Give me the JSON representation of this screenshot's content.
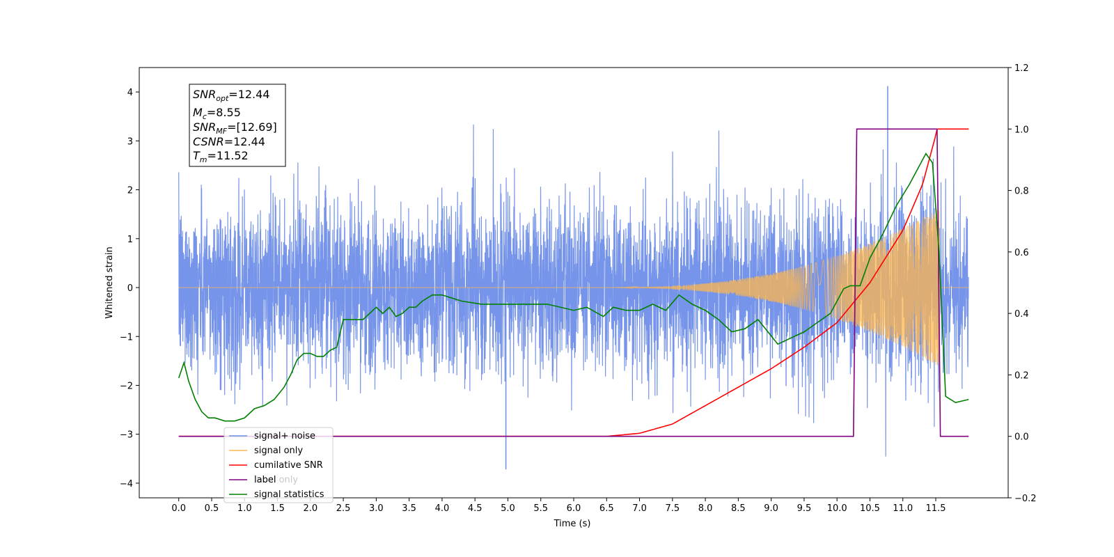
{
  "chart_data": {
    "type": "line",
    "xlabel": "Time (s)",
    "ylabel": "Whitened strain",
    "xlim": [
      -0.6,
      12.6
    ],
    "ylim": [
      -4.3,
      4.5
    ],
    "y2lim": [
      -0.2,
      1.2
    ],
    "x_ticks": [
      "0.0",
      "0.5",
      "1.0",
      "1.5",
      "2.0",
      "2.5",
      "3.0",
      "3.5",
      "4.0",
      "4.5",
      "5.0",
      "5.5",
      "6.0",
      "6.5",
      "7.0",
      "7.5",
      "8.0",
      "8.5",
      "9.0",
      "9.5",
      "10.0",
      "10.5",
      "11.0",
      "11.5"
    ],
    "y_ticks": [
      "−4",
      "−3",
      "−2",
      "−1",
      "0",
      "1",
      "2",
      "3",
      "4"
    ],
    "y2_ticks": [
      "−0.2",
      "0.0",
      "0.2",
      "0.4",
      "0.6",
      "0.8",
      "1.0",
      "1.2"
    ],
    "grid": false,
    "legend_position": "lower-left",
    "annotation": {
      "snr_opt_label": "SNR",
      "snr_opt_sub": "opt",
      "snr_opt_value": "=12.44",
      "mc_label": "M",
      "mc_sub": "c",
      "mc_value": "=8.55",
      "snr_mf_label": "SNR",
      "snr_mf_sub": "MF",
      "snr_mf_value": "=[12.69]",
      "csnr_label": "CSNR",
      "csnr_value": "=12.44",
      "tm_label": "T",
      "tm_sub": "m",
      "tm_value": "=11.52"
    },
    "series": [
      {
        "name": "signal+ noise",
        "color": "#6f8ee8",
        "axis": "left",
        "style": "noise",
        "duration": 12.0,
        "std": 0.85,
        "peak_max": 4.12,
        "peak_min": -3.72
      },
      {
        "name": "signal only",
        "color": "#ffb74d",
        "axis": "left",
        "style": "chirp",
        "onset": 6.3,
        "merger": 11.52,
        "peak_amplitude": 1.6
      },
      {
        "name": "cumilative SNR",
        "color": "#ff0000",
        "axis": "right",
        "x": [
          0,
          6.5,
          7.0,
          7.5,
          8.0,
          8.5,
          9.0,
          9.5,
          10.0,
          10.5,
          11.0,
          11.3,
          11.5,
          11.52,
          12.0
        ],
        "y": [
          0,
          0.0,
          0.01,
          0.04,
          0.1,
          0.16,
          0.22,
          0.29,
          0.37,
          0.5,
          0.67,
          0.82,
          0.98,
          1.0,
          1.0
        ]
      },
      {
        "name": "label",
        "color": "#800080",
        "axis": "right",
        "x": [
          0,
          10.25,
          10.3,
          11.52,
          11.57,
          12.0
        ],
        "y": [
          0,
          0,
          1,
          1,
          0,
          0
        ]
      },
      {
        "name": "label only",
        "color": "#9e9e9e",
        "axis": "right",
        "style": "legend-only"
      },
      {
        "name": "signal statistics",
        "color": "#008000",
        "axis": "right",
        "x": [
          0,
          0.08,
          0.15,
          0.25,
          0.35,
          0.45,
          0.55,
          0.7,
          0.85,
          1.0,
          1.15,
          1.3,
          1.45,
          1.6,
          1.7,
          1.8,
          1.9,
          2.0,
          2.1,
          2.2,
          2.3,
          2.4,
          2.5,
          2.6,
          2.8,
          2.9,
          3.0,
          3.1,
          3.2,
          3.3,
          3.4,
          3.5,
          3.6,
          3.7,
          3.85,
          4.0,
          4.3,
          4.6,
          5.0,
          5.3,
          5.6,
          6.0,
          6.2,
          6.45,
          6.6,
          6.8,
          7.0,
          7.2,
          7.4,
          7.6,
          7.8,
          8.0,
          8.2,
          8.4,
          8.6,
          8.8,
          8.95,
          9.1,
          9.3,
          9.5,
          9.7,
          9.9,
          10.1,
          10.2,
          10.35,
          10.5,
          10.7,
          10.9,
          11.1,
          11.25,
          11.35,
          11.45,
          11.55,
          11.65,
          11.8,
          12.0
        ],
        "y": [
          0.19,
          0.24,
          0.18,
          0.12,
          0.08,
          0.06,
          0.06,
          0.05,
          0.05,
          0.06,
          0.09,
          0.1,
          0.12,
          0.16,
          0.2,
          0.25,
          0.27,
          0.27,
          0.26,
          0.26,
          0.28,
          0.29,
          0.38,
          0.38,
          0.38,
          0.4,
          0.42,
          0.4,
          0.42,
          0.39,
          0.4,
          0.42,
          0.42,
          0.44,
          0.46,
          0.46,
          0.44,
          0.43,
          0.43,
          0.43,
          0.43,
          0.41,
          0.42,
          0.39,
          0.42,
          0.41,
          0.41,
          0.43,
          0.41,
          0.46,
          0.43,
          0.41,
          0.38,
          0.34,
          0.35,
          0.38,
          0.34,
          0.3,
          0.32,
          0.34,
          0.37,
          0.4,
          0.48,
          0.49,
          0.49,
          0.58,
          0.66,
          0.75,
          0.82,
          0.88,
          0.92,
          0.89,
          0.6,
          0.13,
          0.11,
          0.12
        ]
      }
    ]
  }
}
